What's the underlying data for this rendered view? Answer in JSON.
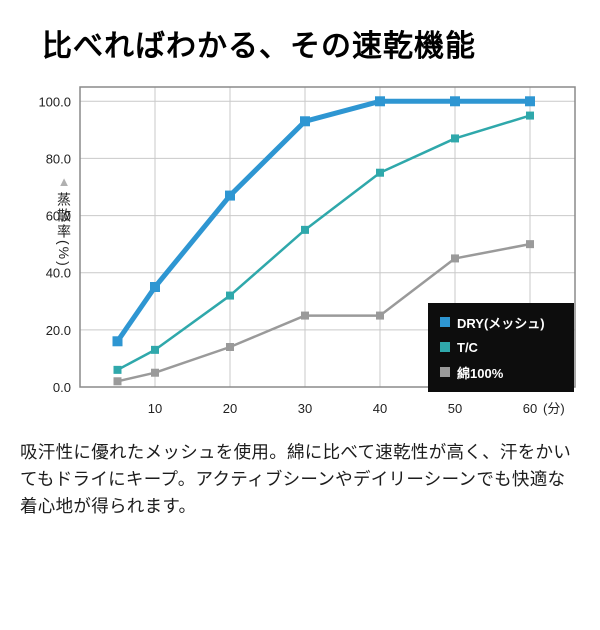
{
  "title": "比べればわかる、その速乾機能",
  "chart_data": {
    "type": "line",
    "ylabel": "蒸散率(%)",
    "y_axis_marker": "▲",
    "x": [
      5,
      10,
      20,
      30,
      40,
      50,
      60
    ],
    "series": [
      {
        "name": "DRY(メッシュ)",
        "color": "#2e96d2",
        "thick": true,
        "values": [
          16,
          35,
          67,
          93,
          100,
          100,
          100
        ]
      },
      {
        "name": "T/C",
        "color": "#2fa8ab",
        "thick": false,
        "values": [
          6,
          13,
          32,
          55,
          75,
          87,
          95
        ]
      },
      {
        "name": "綿100%",
        "color": "#9a9a9a",
        "thick": false,
        "values": [
          2,
          5,
          14,
          25,
          25,
          45,
          50
        ]
      }
    ],
    "x_ticks": [
      10,
      20,
      30,
      40,
      50,
      60
    ],
    "x_unit": "(分)",
    "y_ticks": [
      0,
      20,
      40,
      60,
      80,
      100
    ],
    "xlim": [
      0,
      66
    ],
    "ylim": [
      0,
      105
    ],
    "grid": true,
    "legend_position": "bottom-right",
    "legend_bg": "#0d0d0d"
  },
  "description": "吸汗性に優れたメッシュを使用。綿に比べて速乾性が高く、汗をかいてもドライにキープ。アクティブシーンやデイリーシーンでも快適な着心地が得られます。"
}
